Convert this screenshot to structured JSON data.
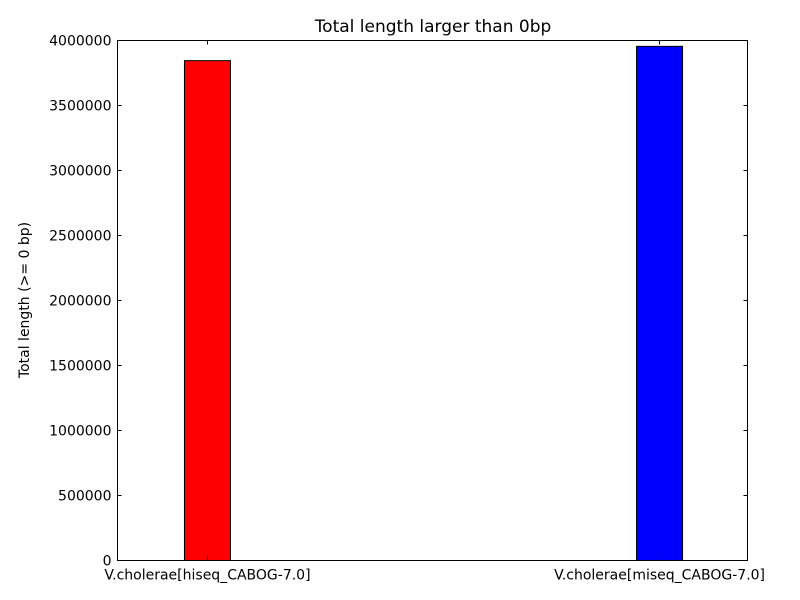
{
  "chart_data": {
    "type": "bar",
    "title": "Total length larger than 0bp",
    "xlabel": "",
    "ylabel": "Total length (>= 0 bp)",
    "categories": [
      "V.cholerae[hiseq_CABOG-7.0]",
      "V.cholerae[miseq_CABOG-7.0]"
    ],
    "values": [
      3845000,
      3955000
    ],
    "bar_colors": [
      "#ff0000",
      "#0000ff"
    ],
    "ylim": [
      0,
      4000000
    ],
    "yticks": [
      0,
      500000,
      1000000,
      1500000,
      2000000,
      2500000,
      3000000,
      3500000,
      4000000
    ],
    "ytick_labels": [
      "0",
      "500000",
      "1000000",
      "1500000",
      "2000000",
      "2500000",
      "3000000",
      "3500000",
      "4000000"
    ],
    "grid": false,
    "legend": "none"
  }
}
